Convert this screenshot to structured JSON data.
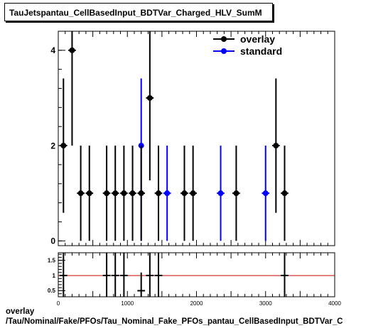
{
  "title": "TauJetspantau_CellBasedInput_BDTVar_Charged_HLV_SumM",
  "footer": {
    "line1": "overlay",
    "line2": "/Tau/Nominal/Fake/PFOs/Tau_Nominal_Fake_PFOs_pantau_CellBasedInput_BDTVar_C"
  },
  "colors": {
    "overlay": "#000000",
    "standard": "#0000ff",
    "ratio_line": "#cc0000"
  },
  "chart_data": [
    {
      "type": "scatter",
      "xlim": [
        0,
        4000
      ],
      "ylim": [
        -0.1,
        4.4
      ],
      "yticks": [
        0,
        2,
        4
      ],
      "legend_position": "top-right",
      "series": [
        {
          "name": "overlay",
          "points": [
            {
              "x": 75,
              "y": 2,
              "ylo": 0.59,
              "yhi": 3.41,
              "xhw": 55
            },
            {
              "x": 200,
              "y": 4,
              "ylo": 2.0,
              "yhi": 5.0,
              "xhw": 55
            },
            {
              "x": 325,
              "y": 1,
              "ylo": 0,
              "yhi": 2,
              "xhw": 55
            },
            {
              "x": 450,
              "y": 1,
              "ylo": 0,
              "yhi": 2,
              "xhw": 55
            },
            {
              "x": 700,
              "y": 1,
              "ylo": 0,
              "yhi": 2,
              "xhw": 55
            },
            {
              "x": 825,
              "y": 1,
              "ylo": 0,
              "yhi": 2,
              "xhw": 55
            },
            {
              "x": 950,
              "y": 1,
              "ylo": 0,
              "yhi": 2,
              "xhw": 55
            },
            {
              "x": 1075,
              "y": 1,
              "ylo": 0,
              "yhi": 2,
              "xhw": 55
            },
            {
              "x": 1200,
              "y": 1,
              "ylo": 0,
              "yhi": 2,
              "xhw": 55
            },
            {
              "x": 1325,
              "y": 3,
              "ylo": 1.27,
              "yhi": 5.0,
              "xhw": 55
            },
            {
              "x": 1450,
              "y": 1,
              "ylo": 0,
              "yhi": 2,
              "xhw": 55
            },
            {
              "x": 1825,
              "y": 1,
              "ylo": 0,
              "yhi": 2,
              "xhw": 55
            },
            {
              "x": 1950,
              "y": 1,
              "ylo": 0,
              "yhi": 2,
              "xhw": 55
            },
            {
              "x": 2575,
              "y": 1,
              "ylo": 0,
              "yhi": 2,
              "xhw": 55
            },
            {
              "x": 3150,
              "y": 2,
              "ylo": 0.59,
              "yhi": 3.41,
              "xhw": 55
            },
            {
              "x": 3275,
              "y": 1,
              "ylo": 0,
              "yhi": 2,
              "xhw": 55
            }
          ]
        },
        {
          "name": "standard",
          "points": [
            {
              "x": 1200,
              "y": 2,
              "ylo": 0,
              "yhi": 3.41,
              "xhw": 0
            },
            {
              "x": 1575,
              "y": 1,
              "ylo": 0,
              "yhi": 2,
              "xhw": 55
            },
            {
              "x": 2350,
              "y": 1,
              "ylo": 0,
              "yhi": 2,
              "xhw": 55
            },
            {
              "x": 3000,
              "y": 1,
              "ylo": 0,
              "yhi": 2,
              "xhw": 55
            }
          ]
        }
      ]
    },
    {
      "type": "scatter",
      "xlim": [
        0,
        4000
      ],
      "xticks": [
        0,
        1000,
        2000,
        3000,
        4000
      ],
      "ylim": [
        0.3,
        1.75
      ],
      "yticks": [
        0.5,
        1,
        1.5
      ],
      "ytick_labels": [
        "0.5",
        "1",
        "1.5"
      ],
      "reference_line": 1,
      "series": [
        {
          "name": "ratio",
          "points": [
            {
              "x": 75,
              "y": 1,
              "ylo": 0.3,
              "yhi": 1.75,
              "xhw": 55
            },
            {
              "x": 700,
              "y": 1,
              "ylo": 0.3,
              "yhi": 1.75,
              "xhw": 55
            },
            {
              "x": 825,
              "y": 1,
              "ylo": 0.3,
              "yhi": 1.75,
              "xhw": 55
            },
            {
              "x": 950,
              "y": 1,
              "ylo": 0.3,
              "yhi": 1.75,
              "xhw": 55
            },
            {
              "x": 1200,
              "y": 0.5,
              "ylo": 0.3,
              "yhi": 1.1,
              "xhw": 55
            },
            {
              "x": 1325,
              "y": 1,
              "ylo": 0.3,
              "yhi": 1.75,
              "xhw": 55
            },
            {
              "x": 1450,
              "y": 1,
              "ylo": 0.3,
              "yhi": 1.75,
              "xhw": 55
            },
            {
              "x": 3275,
              "y": 1,
              "ylo": 0.3,
              "yhi": 1.75,
              "xhw": 55
            }
          ]
        }
      ]
    }
  ]
}
